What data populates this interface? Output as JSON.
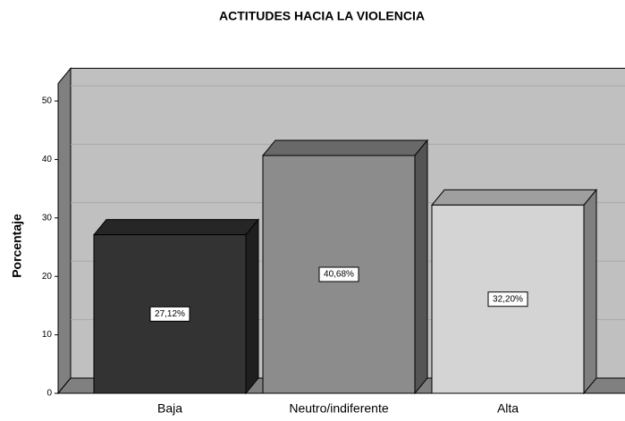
{
  "chart_data": {
    "type": "bar3d",
    "title": "ACTITUDES HACIA LA VIOLENCIA",
    "y_label": "Porcentaje",
    "categories": [
      "Baja",
      "Neutro/indiferente",
      "Alta"
    ],
    "values": [
      27.12,
      40.68,
      32.2
    ],
    "value_labels": [
      "27,12%",
      "40,68%",
      "32,20%"
    ],
    "colors": [
      "#333333",
      "#8c8c8c",
      "#d4d4d4"
    ],
    "ylim": [
      0,
      53
    ],
    "yticks": [
      0,
      10,
      20,
      30,
      40,
      50
    ],
    "grid": true
  }
}
